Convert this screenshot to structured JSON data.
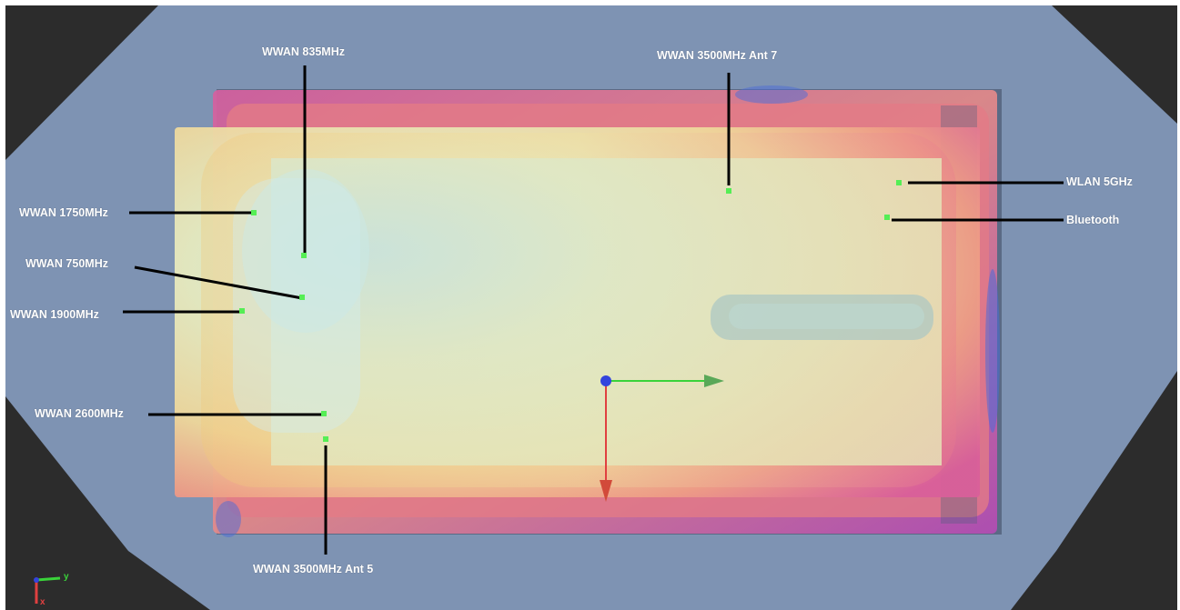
{
  "viewport": {
    "background": "#2c2c2c",
    "phantom_color": "#7e93b3"
  },
  "antennas": {
    "wwan_835": {
      "label": "WWAN 835MHz"
    },
    "wwan_3500_ant7": {
      "label": "WWAN 3500MHz Ant 7"
    },
    "wlan_5ghz": {
      "label": "WLAN 5GHz"
    },
    "bluetooth": {
      "label": "Bluetooth"
    },
    "wwan_1750": {
      "label": "WWAN 1750MHz"
    },
    "wwan_750": {
      "label": "WWAN 750MHz"
    },
    "wwan_1900": {
      "label": "WWAN 1900MHz"
    },
    "wwan_2600": {
      "label": "WWAN 2600MHz"
    },
    "wwan_3500_ant5": {
      "label": "WWAN 3500MHz Ant 5"
    }
  },
  "marker_color": "#55ee55",
  "axis_triad": {
    "y_label": "y",
    "x_label": "x",
    "y_color": "#3ad33a",
    "x_color": "#e04040",
    "origin_color": "#3344dd"
  }
}
